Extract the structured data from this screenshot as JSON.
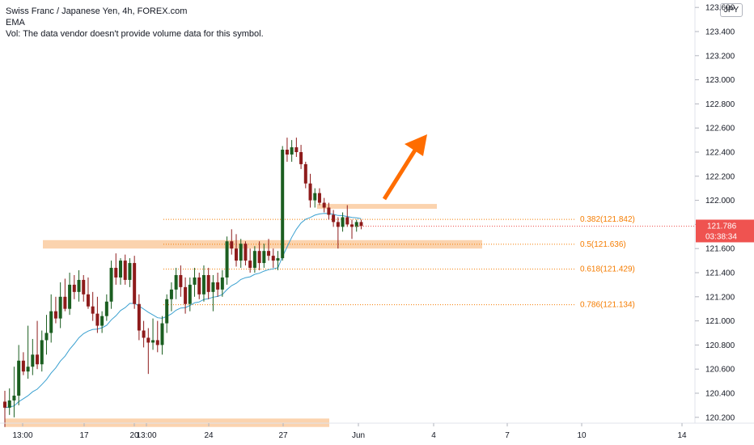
{
  "header": {
    "title": "Swiss Franc / Japanese Yen, 4h, FOREX.com",
    "indicator": "EMA",
    "volume_note": "Vol: The data vendor doesn't provide volume data for this symbol."
  },
  "currency_button": "JPY",
  "current_price": {
    "value": "121.786",
    "countdown": "03:38:34",
    "color": "#ef5350"
  },
  "colors": {
    "up_candle": "#1b5e20",
    "down_candle": "#8e1b1b",
    "ema": "#3aa0d0",
    "zone": "#fbd3ae",
    "fib": "#f57c00",
    "arrow": "#ff6d00"
  },
  "chart_data": {
    "type": "candlestick",
    "title": "Swiss Franc / Japanese Yen, 4h, FOREX.com",
    "y_axis_ticks": [
      "123.600",
      "123.400",
      "123.200",
      "123.000",
      "122.800",
      "122.600",
      "122.400",
      "122.200",
      "122.000",
      "121.800",
      "121.600",
      "121.400",
      "121.200",
      "121.000",
      "120.800",
      "120.600",
      "120.400",
      "120.200"
    ],
    "ylim": [
      120.1,
      123.65
    ],
    "x_axis_ticks": [
      "13:00",
      "17",
      "20",
      "13:00",
      "24",
      "27",
      "Jun",
      "4",
      "7",
      "10",
      "14"
    ],
    "fib_levels": [
      {
        "label": "0.382(121.842)",
        "value": 121.842
      },
      {
        "label": "0.5(121.636)",
        "value": 121.636
      },
      {
        "label": "0.618(121.429)",
        "value": 121.429
      },
      {
        "label": "0.786(121.134)",
        "value": 121.134
      }
    ],
    "zones": [
      {
        "from": 121.6,
        "to": 121.67
      },
      {
        "from": 121.93,
        "to": 121.97
      },
      {
        "from": 120.12,
        "to": 120.19
      }
    ],
    "candles": [
      {
        "o": 120.33,
        "h": 120.42,
        "l": 120.12,
        "c": 120.28
      },
      {
        "o": 120.28,
        "h": 120.44,
        "l": 120.22,
        "c": 120.34
      },
      {
        "o": 120.34,
        "h": 120.62,
        "l": 120.2,
        "c": 120.38
      },
      {
        "o": 120.38,
        "h": 120.8,
        "l": 120.3,
        "c": 120.67
      },
      {
        "o": 120.67,
        "h": 120.74,
        "l": 120.55,
        "c": 120.58
      },
      {
        "o": 120.58,
        "h": 120.96,
        "l": 120.52,
        "c": 120.62
      },
      {
        "o": 120.62,
        "h": 120.85,
        "l": 120.55,
        "c": 120.72
      },
      {
        "o": 120.72,
        "h": 121.0,
        "l": 120.6,
        "c": 120.64
      },
      {
        "o": 120.64,
        "h": 120.92,
        "l": 120.58,
        "c": 120.84
      },
      {
        "o": 120.84,
        "h": 121.05,
        "l": 120.72,
        "c": 120.9
      },
      {
        "o": 120.9,
        "h": 121.22,
        "l": 120.82,
        "c": 121.08
      },
      {
        "o": 121.08,
        "h": 121.2,
        "l": 120.98,
        "c": 121.02
      },
      {
        "o": 121.02,
        "h": 121.32,
        "l": 120.94,
        "c": 121.2
      },
      {
        "o": 121.2,
        "h": 121.35,
        "l": 121.08,
        "c": 121.1
      },
      {
        "o": 121.1,
        "h": 121.4,
        "l": 121.05,
        "c": 121.3
      },
      {
        "o": 121.3,
        "h": 121.38,
        "l": 121.18,
        "c": 121.24
      },
      {
        "o": 121.24,
        "h": 121.42,
        "l": 121.16,
        "c": 121.34
      },
      {
        "o": 121.34,
        "h": 121.38,
        "l": 121.16,
        "c": 121.22
      },
      {
        "o": 121.22,
        "h": 121.36,
        "l": 121.1,
        "c": 121.12
      },
      {
        "o": 121.12,
        "h": 121.24,
        "l": 121.0,
        "c": 121.06
      },
      {
        "o": 121.06,
        "h": 121.2,
        "l": 120.9,
        "c": 120.96
      },
      {
        "o": 120.96,
        "h": 121.08,
        "l": 120.9,
        "c": 121.04
      },
      {
        "o": 121.04,
        "h": 121.22,
        "l": 121.0,
        "c": 121.16
      },
      {
        "o": 121.16,
        "h": 121.5,
        "l": 121.1,
        "c": 121.44
      },
      {
        "o": 121.44,
        "h": 121.56,
        "l": 121.3,
        "c": 121.36
      },
      {
        "o": 121.36,
        "h": 121.52,
        "l": 121.3,
        "c": 121.5
      },
      {
        "o": 121.5,
        "h": 121.55,
        "l": 121.3,
        "c": 121.34
      },
      {
        "o": 121.34,
        "h": 121.52,
        "l": 121.28,
        "c": 121.48
      },
      {
        "o": 121.48,
        "h": 121.54,
        "l": 121.1,
        "c": 121.14
      },
      {
        "o": 121.14,
        "h": 121.22,
        "l": 120.84,
        "c": 120.92
      },
      {
        "o": 120.92,
        "h": 121.0,
        "l": 120.78,
        "c": 120.86
      },
      {
        "o": 120.86,
        "h": 120.94,
        "l": 120.56,
        "c": 120.82
      },
      {
        "o": 120.82,
        "h": 121.02,
        "l": 120.76,
        "c": 120.84
      },
      {
        "o": 120.84,
        "h": 121.0,
        "l": 120.74,
        "c": 120.8
      },
      {
        "o": 120.8,
        "h": 121.04,
        "l": 120.72,
        "c": 120.98
      },
      {
        "o": 120.98,
        "h": 121.22,
        "l": 120.9,
        "c": 121.18
      },
      {
        "o": 121.18,
        "h": 121.32,
        "l": 121.08,
        "c": 121.26
      },
      {
        "o": 121.26,
        "h": 121.44,
        "l": 121.18,
        "c": 121.38
      },
      {
        "o": 121.38,
        "h": 121.46,
        "l": 121.2,
        "c": 121.28
      },
      {
        "o": 121.28,
        "h": 121.36,
        "l": 121.06,
        "c": 121.14
      },
      {
        "o": 121.14,
        "h": 121.36,
        "l": 121.08,
        "c": 121.3
      },
      {
        "o": 121.3,
        "h": 121.44,
        "l": 121.2,
        "c": 121.36
      },
      {
        "o": 121.36,
        "h": 121.4,
        "l": 121.18,
        "c": 121.22
      },
      {
        "o": 121.22,
        "h": 121.46,
        "l": 121.16,
        "c": 121.38
      },
      {
        "o": 121.38,
        "h": 121.44,
        "l": 121.18,
        "c": 121.24
      },
      {
        "o": 121.24,
        "h": 121.38,
        "l": 121.08,
        "c": 121.32
      },
      {
        "o": 121.32,
        "h": 121.4,
        "l": 121.2,
        "c": 121.26
      },
      {
        "o": 121.26,
        "h": 121.42,
        "l": 121.2,
        "c": 121.36
      },
      {
        "o": 121.36,
        "h": 121.7,
        "l": 121.3,
        "c": 121.66
      },
      {
        "o": 121.66,
        "h": 121.76,
        "l": 121.55,
        "c": 121.6
      },
      {
        "o": 121.6,
        "h": 121.72,
        "l": 121.45,
        "c": 121.5
      },
      {
        "o": 121.5,
        "h": 121.68,
        "l": 121.44,
        "c": 121.64
      },
      {
        "o": 121.64,
        "h": 121.66,
        "l": 121.46,
        "c": 121.5
      },
      {
        "o": 121.5,
        "h": 121.6,
        "l": 121.4,
        "c": 121.44
      },
      {
        "o": 121.44,
        "h": 121.62,
        "l": 121.4,
        "c": 121.58
      },
      {
        "o": 121.58,
        "h": 121.66,
        "l": 121.42,
        "c": 121.48
      },
      {
        "o": 121.48,
        "h": 121.64,
        "l": 121.44,
        "c": 121.58
      },
      {
        "o": 121.58,
        "h": 121.68,
        "l": 121.5,
        "c": 121.54
      },
      {
        "o": 121.54,
        "h": 121.6,
        "l": 121.44,
        "c": 121.5
      },
      {
        "o": 121.5,
        "h": 121.58,
        "l": 121.42,
        "c": 121.52
      },
      {
        "o": 121.52,
        "h": 122.45,
        "l": 121.5,
        "c": 122.42
      },
      {
        "o": 122.42,
        "h": 122.52,
        "l": 122.32,
        "c": 122.38
      },
      {
        "o": 122.38,
        "h": 122.5,
        "l": 122.32,
        "c": 122.44
      },
      {
        "o": 122.44,
        "h": 122.52,
        "l": 122.36,
        "c": 122.4
      },
      {
        "o": 122.4,
        "h": 122.46,
        "l": 122.26,
        "c": 122.3
      },
      {
        "o": 122.3,
        "h": 122.32,
        "l": 122.1,
        "c": 122.14
      },
      {
        "o": 122.14,
        "h": 122.22,
        "l": 121.94,
        "c": 122.0
      },
      {
        "o": 122.0,
        "h": 122.1,
        "l": 121.94,
        "c": 122.06
      },
      {
        "o": 122.06,
        "h": 122.1,
        "l": 121.96,
        "c": 121.98
      },
      {
        "o": 121.98,
        "h": 122.02,
        "l": 121.9,
        "c": 121.94
      },
      {
        "o": 121.94,
        "h": 121.98,
        "l": 121.84,
        "c": 121.88
      },
      {
        "o": 121.88,
        "h": 121.92,
        "l": 121.78,
        "c": 121.82
      },
      {
        "o": 121.82,
        "h": 121.86,
        "l": 121.6,
        "c": 121.78
      },
      {
        "o": 121.78,
        "h": 121.9,
        "l": 121.74,
        "c": 121.86
      },
      {
        "o": 121.86,
        "h": 121.96,
        "l": 121.78,
        "c": 121.8
      },
      {
        "o": 121.8,
        "h": 121.84,
        "l": 121.68,
        "c": 121.78
      },
      {
        "o": 121.78,
        "h": 121.84,
        "l": 121.74,
        "c": 121.82
      },
      {
        "o": 121.82,
        "h": 121.84,
        "l": 121.76,
        "c": 121.786
      }
    ]
  }
}
